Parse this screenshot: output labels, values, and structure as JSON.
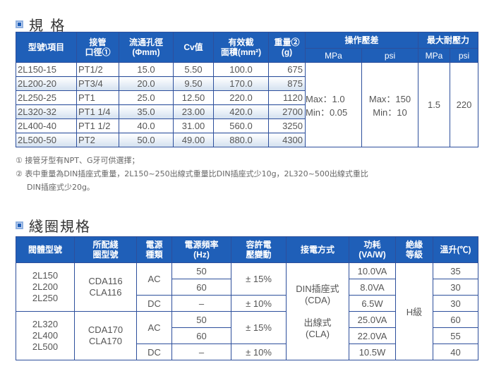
{
  "spec": {
    "title": "規 格",
    "headers": {
      "model": "型號\\項目",
      "port": [
        "接管",
        "口徑①"
      ],
      "orifice": [
        "流通孔徑",
        "(Φmm)"
      ],
      "cv": "Cv值",
      "area": [
        "有效截",
        "面積(mm²)"
      ],
      "weight": [
        "重量②",
        "(g)"
      ],
      "op": "操作壓差",
      "max": "最大耐壓力",
      "mpa": "MPa",
      "psi": "psi"
    },
    "rows": [
      {
        "model": "2L150-15",
        "port": "PT1/2",
        "orifice": "15.0",
        "cv": "5.50",
        "area": "100.0",
        "weight": "675"
      },
      {
        "model": "2L200-20",
        "port": "PT3/4",
        "orifice": "20.0",
        "cv": "9.50",
        "area": "170.0",
        "weight": "875"
      },
      {
        "model": "2L250-25",
        "port": "PT1",
        "orifice": "25.0",
        "cv": "12.50",
        "area": "220.0",
        "weight": "1120"
      },
      {
        "model": "2L320-32",
        "port": "PT1 1/4",
        "orifice": "35.0",
        "cv": "23.00",
        "area": "420.0",
        "weight": "2700"
      },
      {
        "model": "2L400-40",
        "port": "PT1 1/2",
        "orifice": "40.0",
        "cv": "31.00",
        "area": "560.0",
        "weight": "3250"
      },
      {
        "model": "2L500-50",
        "port": "PT2",
        "orifice": "50.0",
        "cv": "49.00",
        "area": "880.0",
        "weight": "4300"
      }
    ],
    "op_mpa": [
      "Max：1.0",
      "Min：0.05"
    ],
    "op_psi": [
      "Max：150",
      "Min：10"
    ],
    "max_mpa": "1.5",
    "max_psi": "220"
  },
  "notes": [
    "① 接管牙型有NPT、G牙可供選擇；",
    "② 表中重量為DIN插座式重量，2L150~250出線式重量比DIN插座式少10g，2L320~500出線式重比",
    "DIN插座式少20g。"
  ],
  "coil": {
    "title": "綫圈規格",
    "headers": {
      "body": "閥體型號",
      "coil": [
        "所配綫",
        "圈型號"
      ],
      "power": [
        "電源",
        "種類"
      ],
      "freq": [
        "電源頻率",
        "(Hz)"
      ],
      "volt": [
        "容許電",
        "壓變動"
      ],
      "conn": "接電方式",
      "cons": [
        "功耗",
        "(VA/W)"
      ],
      "ins": [
        "絶緣",
        "等級"
      ],
      "temp": "溫升(℃)"
    },
    "groups": [
      {
        "bodies": [
          "2L150",
          "2L200",
          "2L250"
        ],
        "coils": [
          "CDA116",
          "CLA116"
        ],
        "ac_freq": [
          "50",
          "60"
        ],
        "dc_freq": "–",
        "ac_volt": "± 15%",
        "dc_volt": "± 10%",
        "cons": [
          "10.0VA",
          "8.0VA",
          "6.5W"
        ],
        "temp": [
          "35",
          "30",
          "30"
        ]
      },
      {
        "bodies": [
          "2L320",
          "2L400",
          "2L500"
        ],
        "coils": [
          "CDA170",
          "CLA170"
        ],
        "ac_freq": [
          "50",
          "60"
        ],
        "dc_freq": "–",
        "ac_volt": "± 15%",
        "dc_volt": "± 10%",
        "cons": [
          "25.0VA",
          "22.0VA",
          "10.5W"
        ],
        "temp": [
          "60",
          "55",
          "40"
        ]
      }
    ],
    "ac": "AC",
    "dc": "DC",
    "conn": [
      "DIN插座式",
      "(CDA)",
      "出線式",
      "(CLA)"
    ],
    "ins": "H級"
  },
  "colors": {
    "header": "#1f5fb8",
    "border": "#2d4f9c"
  }
}
